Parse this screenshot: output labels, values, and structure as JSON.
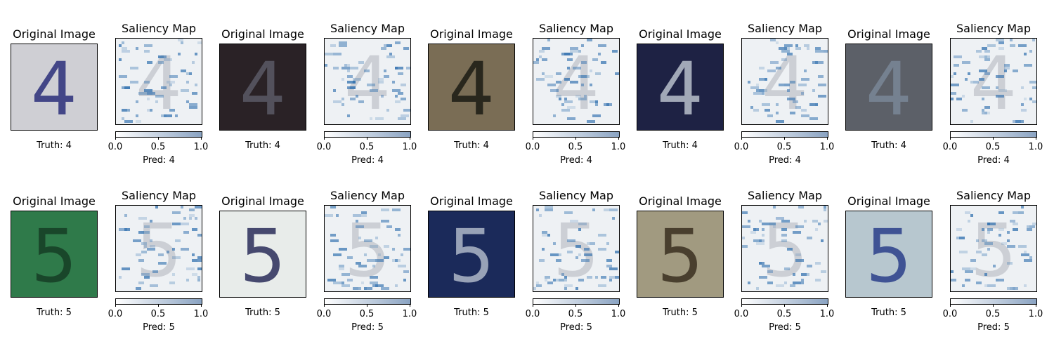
{
  "figure": {
    "rows": [
      {
        "digit": "4",
        "pairs": [
          {
            "original_title": "Original Image",
            "truth": "Truth: 4",
            "saliency_title": "Saliency Map",
            "pred": "Pred: 4",
            "bg": "#cfcfd4",
            "digit_color": "#2b2f7a",
            "sal_seed": 11
          },
          {
            "original_title": "Original Image",
            "truth": "Truth: 4",
            "saliency_title": "Saliency Map",
            "pred": "Pred: 4",
            "bg": "#2a2226",
            "digit_color": "#5b5a66",
            "sal_seed": 23
          },
          {
            "original_title": "Original Image",
            "truth": "Truth: 4",
            "saliency_title": "Saliency Map",
            "pred": "Pred: 4",
            "bg": "#7a6d55",
            "digit_color": "#1b1b14",
            "sal_seed": 37
          },
          {
            "original_title": "Original Image",
            "truth": "Truth: 4",
            "saliency_title": "Saliency Map",
            "pred": "Pred: 4",
            "bg": "#1e2244",
            "digit_color": "#b9c0cc",
            "sal_seed": 41
          },
          {
            "original_title": "Original Image",
            "truth": "Truth: 4",
            "saliency_title": "Saliency Map",
            "pred": "Pred: 4",
            "bg": "#5c6068",
            "digit_color": "#7a8797",
            "sal_seed": 53
          }
        ]
      },
      {
        "digit": "5",
        "pairs": [
          {
            "original_title": "Original Image",
            "truth": "Truth: 5",
            "saliency_title": "Saliency Map",
            "pred": "Pred: 5",
            "bg": "#2f7a4a",
            "digit_color": "#163d25",
            "sal_seed": 61
          },
          {
            "original_title": "Original Image",
            "truth": "Truth: 5",
            "saliency_title": "Saliency Map",
            "pred": "Pred: 5",
            "bg": "#e8ecea",
            "digit_color": "#2a2d5a",
            "sal_seed": 73
          },
          {
            "original_title": "Original Image",
            "truth": "Truth: 5",
            "saliency_title": "Saliency Map",
            "pred": "Pred: 5",
            "bg": "#1b2a5a",
            "digit_color": "#aeb8c8",
            "sal_seed": 89
          },
          {
            "original_title": "Original Image",
            "truth": "Truth: 5",
            "saliency_title": "Saliency Map",
            "pred": "Pred: 5",
            "bg": "#a19a80",
            "digit_color": "#3a3020",
            "sal_seed": 97
          },
          {
            "original_title": "Original Image",
            "truth": "Truth: 5",
            "saliency_title": "Saliency Map",
            "pred": "Pred: 5",
            "bg": "#b7c7cf",
            "digit_color": "#2b3f8a",
            "sal_seed": 103
          }
        ]
      }
    ],
    "colorbar": {
      "tick_labels": [
        "0.0",
        "0.5",
        "1.0"
      ],
      "colors": [
        "#ffffff",
        "#8aa3c2"
      ]
    },
    "saliency_colors": {
      "base": "#c9ccd2",
      "highlight": "#2f6fae"
    }
  }
}
